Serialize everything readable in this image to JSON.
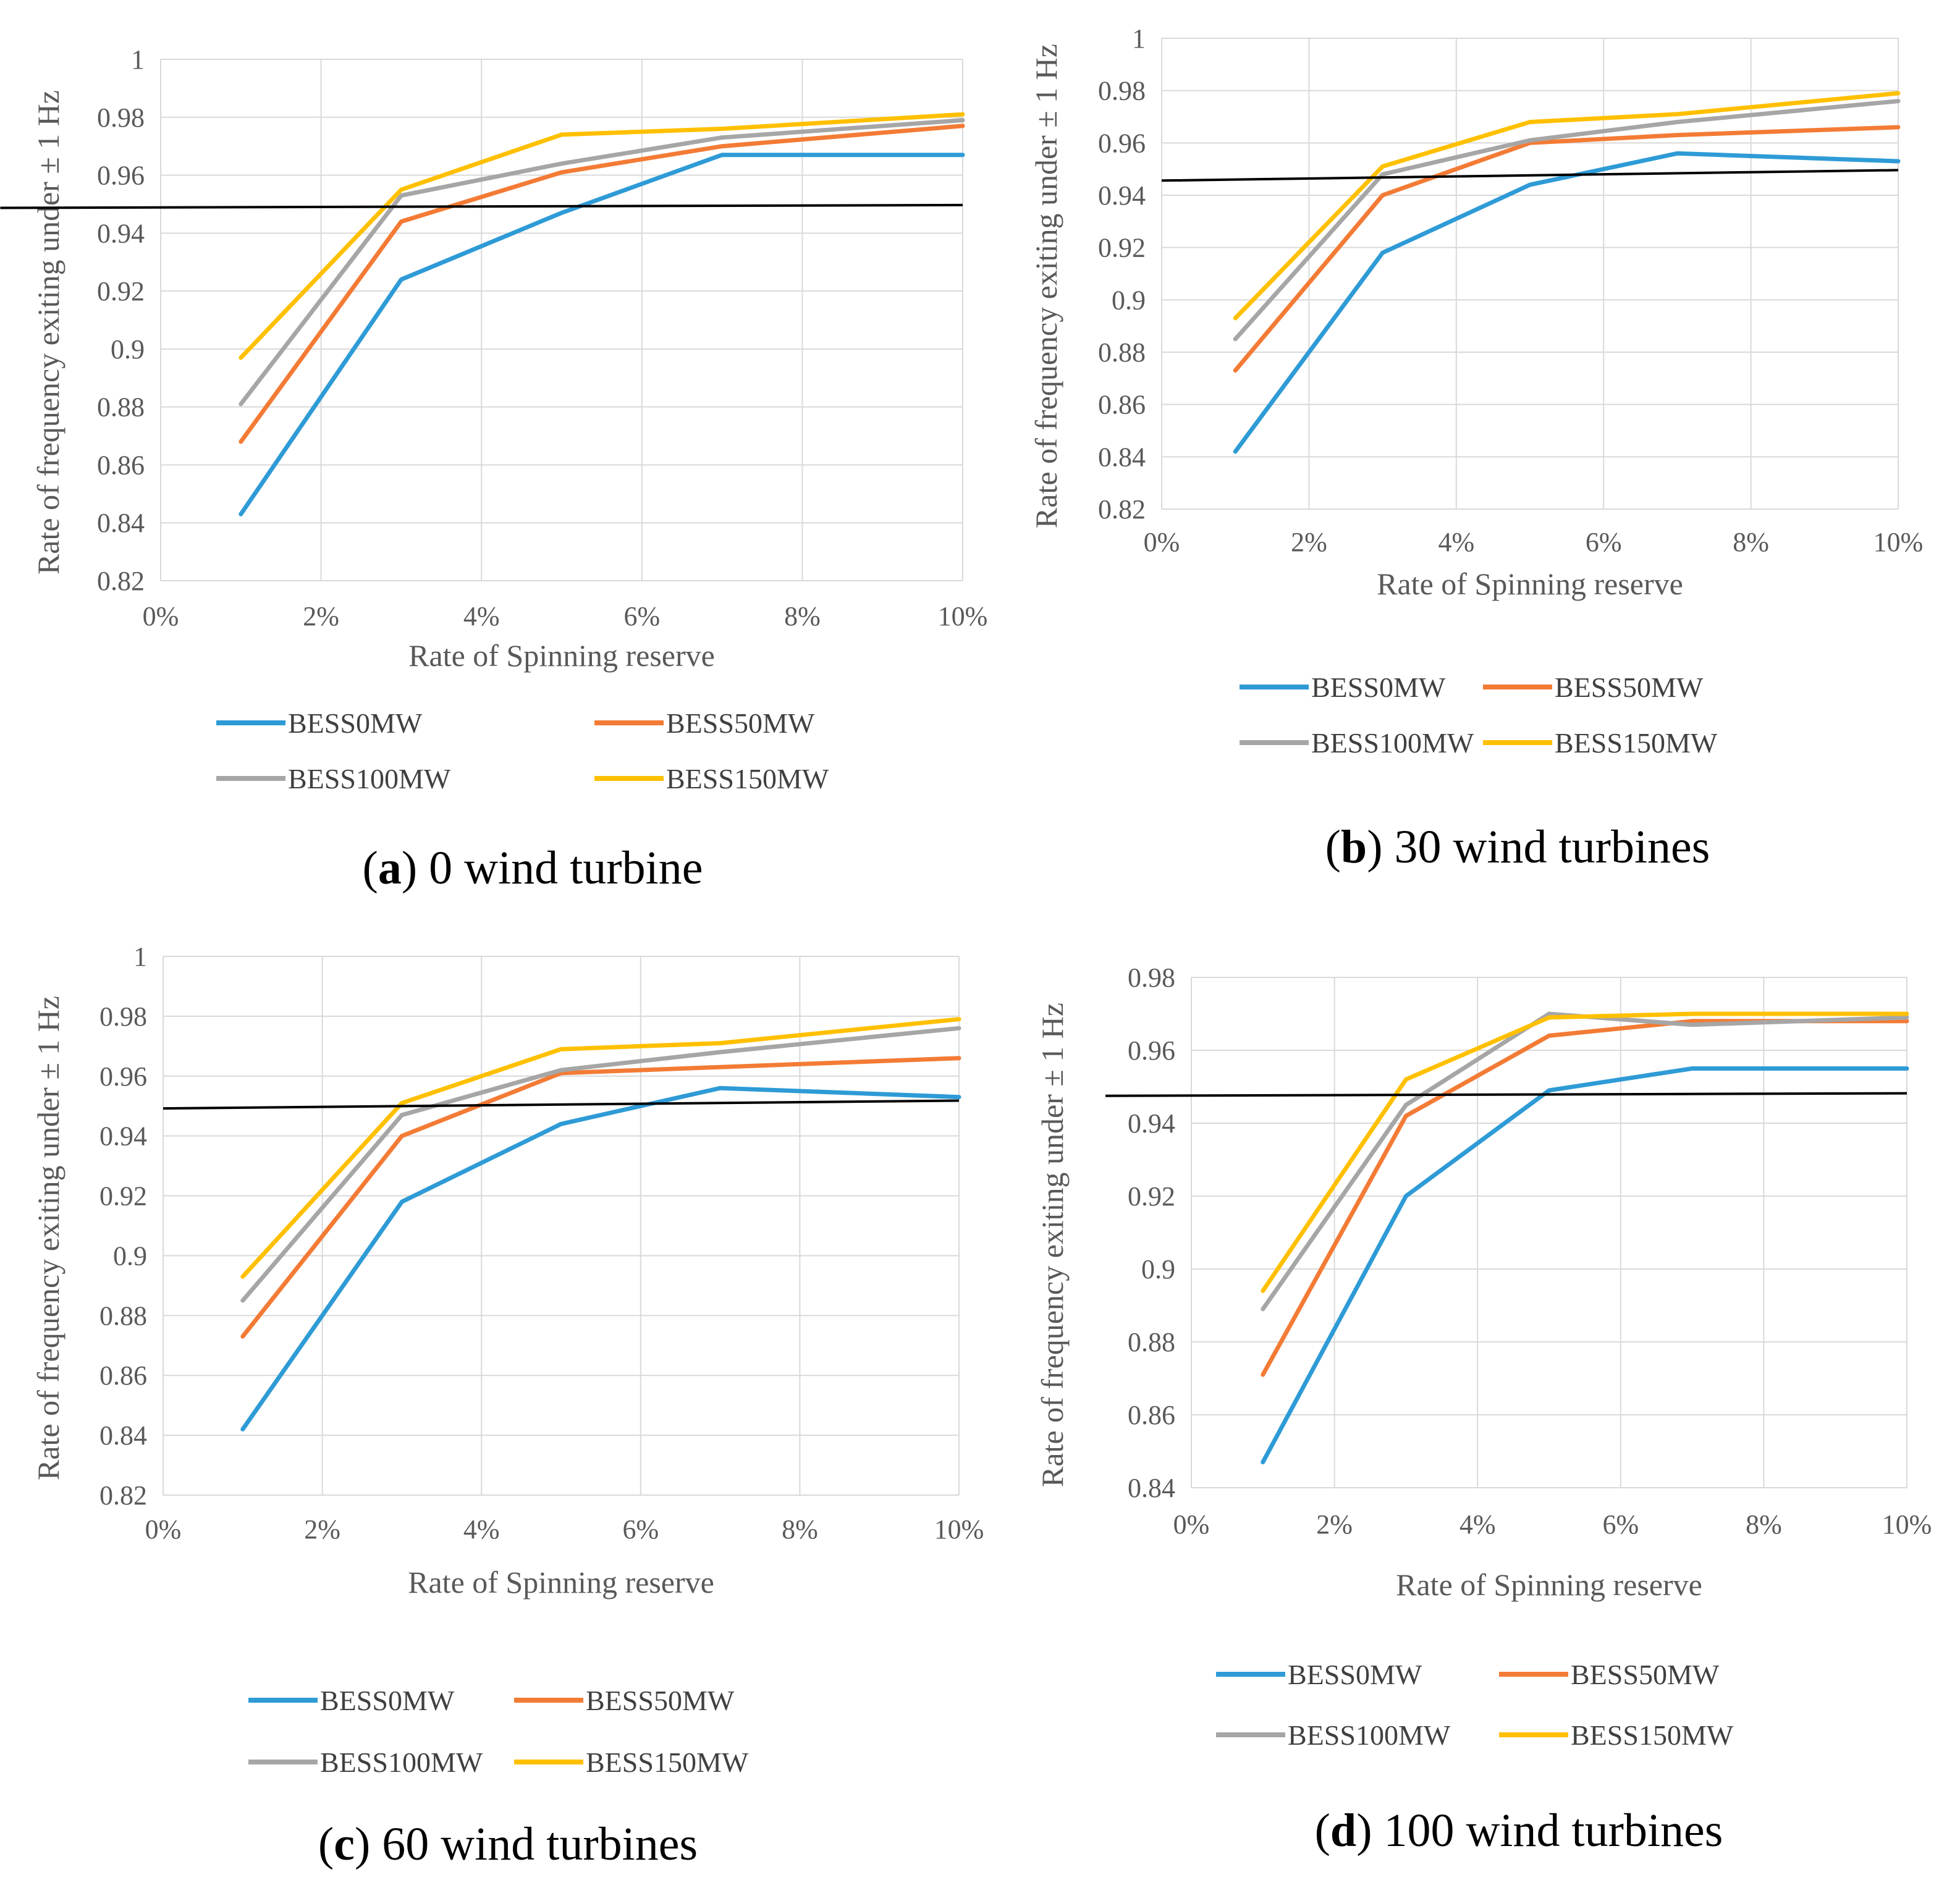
{
  "figure": {
    "colors": {
      "BESS0MW": "#2e9bd6",
      "BESS50MW": "#f37b35",
      "BESS100MW": "#a6a6a6",
      "BESS150MW": "#ffc000",
      "threshold": "#000000",
      "grid": "#d9d9d9"
    }
  },
  "chart_data": [
    {
      "type": "line",
      "caption": {
        "open": "(",
        "letter": "a",
        "close": ")",
        "text": " 0 wind turbine"
      },
      "xlabel": "Rate of Spinning reserve",
      "ylabel": "Rate of frequency exiting under ± 1 Hz",
      "xlim": [
        0,
        10
      ],
      "ylim": [
        0.82,
        1
      ],
      "x_ticks": [
        "0%",
        "2%",
        "4%",
        "6%",
        "8%",
        "10%"
      ],
      "y_ticks": [
        "0.82",
        "0.84",
        "0.86",
        "0.88",
        "0.9",
        "0.92",
        "0.94",
        "0.96",
        "0.98",
        "1"
      ],
      "threshold": [
        [
          -2.0,
          0.9487
        ],
        [
          10,
          0.9497
        ]
      ],
      "series": [
        {
          "name": "BESS0MW",
          "x": [
            1,
            3,
            5,
            7,
            10
          ],
          "values": [
            0.843,
            0.924,
            0.947,
            0.967,
            0.967
          ]
        },
        {
          "name": "BESS50MW",
          "x": [
            1,
            3,
            5,
            7,
            10
          ],
          "values": [
            0.868,
            0.944,
            0.961,
            0.97,
            0.977
          ]
        },
        {
          "name": "BESS100MW",
          "x": [
            1,
            3,
            5,
            7,
            10
          ],
          "values": [
            0.881,
            0.953,
            0.964,
            0.973,
            0.979
          ]
        },
        {
          "name": "BESS150MW",
          "x": [
            1,
            3,
            5,
            7,
            10
          ],
          "values": [
            0.897,
            0.955,
            0.974,
            0.976,
            0.981
          ]
        }
      ]
    },
    {
      "type": "line",
      "caption": {
        "open": "(",
        "letter": "b",
        "close": ")",
        "text": " 30 wind turbines"
      },
      "xlabel": "Rate of Spinning reserve",
      "ylabel": "Rate of frequency exiting under ± 1 Hz",
      "xlim": [
        0,
        10
      ],
      "ylim": [
        0.82,
        1
      ],
      "x_ticks": [
        "0%",
        "2%",
        "4%",
        "6%",
        "8%",
        "10%"
      ],
      "y_ticks": [
        "0.82",
        "0.84",
        "0.86",
        "0.88",
        "0.9",
        "0.92",
        "0.94",
        "0.96",
        "0.98",
        "1"
      ],
      "threshold": [
        [
          0,
          0.9456
        ],
        [
          10,
          0.9496
        ]
      ],
      "series": [
        {
          "name": "BESS0MW",
          "x": [
            1,
            3,
            5,
            7,
            10
          ],
          "values": [
            0.842,
            0.918,
            0.944,
            0.956,
            0.953
          ]
        },
        {
          "name": "BESS50MW",
          "x": [
            1,
            3,
            5,
            7,
            10
          ],
          "values": [
            0.873,
            0.94,
            0.96,
            0.963,
            0.966
          ]
        },
        {
          "name": "BESS100MW",
          "x": [
            1,
            3,
            5,
            7,
            10
          ],
          "values": [
            0.885,
            0.948,
            0.961,
            0.968,
            0.976
          ]
        },
        {
          "name": "BESS150MW",
          "x": [
            1,
            3,
            5,
            7,
            10
          ],
          "values": [
            0.893,
            0.951,
            0.968,
            0.971,
            0.979
          ]
        }
      ]
    },
    {
      "type": "line",
      "caption": {
        "open": "(",
        "letter": "c",
        "close": ")",
        "text": " 60 wind turbines"
      },
      "xlabel": "Rate of Spinning reserve",
      "ylabel": "Rate of frequency exiting under ± 1 Hz",
      "xlim": [
        0,
        10
      ],
      "ylim": [
        0.82,
        1
      ],
      "x_ticks": [
        "0%",
        "2%",
        "4%",
        "6%",
        "8%",
        "10%"
      ],
      "y_ticks": [
        "0.82",
        "0.84",
        "0.86",
        "0.88",
        "0.9",
        "0.92",
        "0.94",
        "0.96",
        "0.98",
        "1"
      ],
      "threshold": [
        [
          0,
          0.9492
        ],
        [
          10,
          0.9518
        ]
      ],
      "series": [
        {
          "name": "BESS0MW",
          "x": [
            1,
            3,
            5,
            7,
            10
          ],
          "values": [
            0.842,
            0.918,
            0.944,
            0.956,
            0.953
          ]
        },
        {
          "name": "BESS50MW",
          "x": [
            1,
            3,
            5,
            7,
            10
          ],
          "values": [
            0.873,
            0.94,
            0.961,
            0.963,
            0.966
          ]
        },
        {
          "name": "BESS100MW",
          "x": [
            1,
            3,
            5,
            7,
            10
          ],
          "values": [
            0.885,
            0.947,
            0.962,
            0.968,
            0.976
          ]
        },
        {
          "name": "BESS150MW",
          "x": [
            1,
            3,
            5,
            7,
            10
          ],
          "values": [
            0.893,
            0.951,
            0.969,
            0.971,
            0.979
          ]
        }
      ]
    },
    {
      "type": "line",
      "caption": {
        "open": "(",
        "letter": "d",
        "close": ")",
        "text": " 100 wind turbines"
      },
      "xlabel": "Rate of Spinning reserve",
      "ylabel": "Rate of frequency exiting under ± 1 Hz",
      "xlim": [
        0,
        10
      ],
      "ylim": [
        0.84,
        0.98
      ],
      "x_ticks": [
        "0%",
        "2%",
        "4%",
        "6%",
        "8%",
        "10%"
      ],
      "y_ticks": [
        "0.84",
        "0.86",
        "0.88",
        "0.9",
        "0.92",
        "0.94",
        "0.96",
        "0.98"
      ],
      "threshold": [
        [
          -1.2,
          0.9475
        ],
        [
          10,
          0.9482
        ]
      ],
      "series": [
        {
          "name": "BESS0MW",
          "x": [
            1,
            3,
            5,
            7,
            10
          ],
          "values": [
            0.847,
            0.92,
            0.949,
            0.955,
            0.955
          ]
        },
        {
          "name": "BESS50MW",
          "x": [
            1,
            3,
            5,
            7,
            10
          ],
          "values": [
            0.871,
            0.942,
            0.964,
            0.968,
            0.968
          ]
        },
        {
          "name": "BESS100MW",
          "x": [
            1,
            3,
            5,
            7,
            10
          ],
          "values": [
            0.889,
            0.945,
            0.97,
            0.967,
            0.969
          ]
        },
        {
          "name": "BESS150MW",
          "x": [
            1,
            3,
            5,
            7,
            10
          ],
          "values": [
            0.894,
            0.952,
            0.969,
            0.97,
            0.97
          ]
        }
      ]
    }
  ]
}
